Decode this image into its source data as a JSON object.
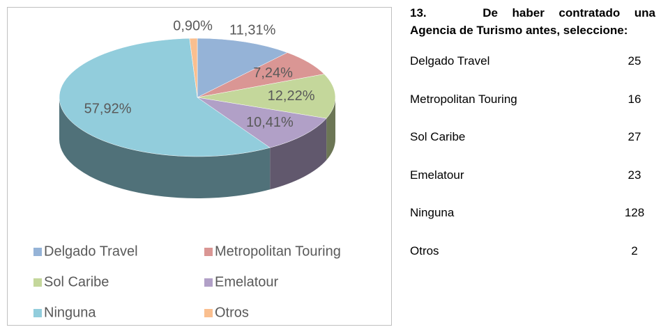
{
  "chart_data": {
    "type": "pie",
    "categories": [
      "Delgado Travel",
      "Metropolitan Touring",
      "Sol Caribe",
      "Emelatour",
      "Ninguna",
      "Otros"
    ],
    "values": [
      11.31,
      7.24,
      12.22,
      10.41,
      57.92,
      0.9
    ],
    "value_labels": [
      "11,31%",
      "7,24%",
      "12,22%",
      "10,41%",
      "57,92%",
      "0,90%"
    ],
    "colors": [
      "#95b3d7",
      "#da9694",
      "#c4d79b",
      "#b1a0c7",
      "#92cddc",
      "#fabf8f"
    ],
    "legend": "bottom"
  },
  "table": {
    "number": "13.",
    "title": "De haber contratado una Agencia de Turismo antes, seleccione:",
    "rows": [
      [
        "Delgado Travel",
        25
      ],
      [
        "Metropolitan Touring",
        16
      ],
      [
        "Sol Caribe",
        27
      ],
      [
        "Emelatour",
        23
      ],
      [
        "Ninguna",
        128
      ],
      [
        "Otros",
        2
      ]
    ]
  }
}
